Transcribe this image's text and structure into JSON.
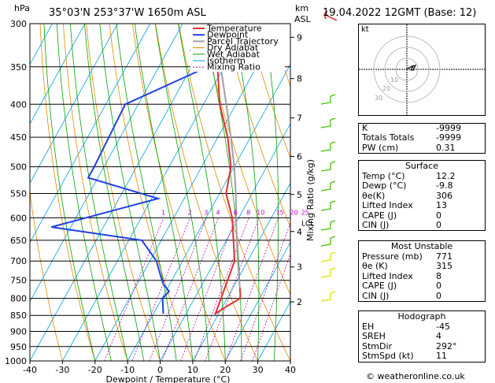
{
  "header": {
    "hpa": "hPa",
    "location": "35°03'N  253°37'W  1650m  ASL",
    "km": "km",
    "asl": "ASL",
    "datetime": "19.04.2022  12GMT  (Base: 12)"
  },
  "legend": [
    "Temperature",
    "Dewpoint",
    "Parcel Trajectory",
    "Dry Adiabat",
    "Wet Adiabat",
    "Isotherm",
    "Mixing Ratio"
  ],
  "colors": {
    "temperature": "#e03030",
    "dewpoint": "#2040e0",
    "parcel": "#a0a0a0",
    "dry": "#e08a00",
    "wet": "#00a000",
    "isotherm": "#00a0e0",
    "mixing": "#c000c0",
    "wind": "#40c000"
  },
  "chart_data": {
    "type": "line",
    "title": "Skew-T log-P sounding",
    "xlabel": "Dewpoint / Temperature (°C)",
    "ylabel": "hPa",
    "ylabel_right": "Mixing Ratio (g/kg)",
    "xlim": [
      -40,
      40
    ],
    "ylim": [
      1000,
      300
    ],
    "x_ticks": [
      -40,
      -30,
      -20,
      -10,
      0,
      10,
      20,
      30,
      40
    ],
    "pressure_ticks": [
      300,
      350,
      400,
      450,
      500,
      550,
      600,
      650,
      700,
      750,
      800,
      850,
      900,
      950,
      1000
    ],
    "km_ticks": [
      {
        "km": "9",
        "p": 315
      },
      {
        "km": "8",
        "p": 365
      },
      {
        "km": "7",
        "p": 420
      },
      {
        "km": "6",
        "p": 482
      },
      {
        "km": "5",
        "p": 552
      },
      {
        "km": "4",
        "p": 630
      },
      {
        "km": "3",
        "p": 715
      },
      {
        "km": "2",
        "p": 810
      }
    ],
    "lcl_label": "LCL",
    "lcl_pressure": 610,
    "mixing_ratio_labels": [
      "1",
      "2",
      "3",
      "4",
      "6",
      "8",
      "10",
      "15",
      "20",
      "25"
    ],
    "series": [
      {
        "name": "Temperature",
        "points": [
          [
            771,
            12.2
          ],
          [
            790,
            13.5
          ],
          [
            800,
            14
          ],
          [
            825,
            11
          ],
          [
            845,
            9
          ],
          [
            700,
            6
          ],
          [
            600,
            -2
          ],
          [
            550,
            -8
          ],
          [
            500,
            -11
          ],
          [
            450,
            -17
          ],
          [
            400,
            -25
          ],
          [
            350,
            -32
          ],
          [
            300,
            -38
          ]
        ]
      },
      {
        "name": "Dewpoint",
        "points": [
          [
            845,
            -7
          ],
          [
            800,
            -9.8
          ],
          [
            780,
            -9
          ],
          [
            760,
            -12
          ],
          [
            740,
            -14
          ],
          [
            700,
            -18
          ],
          [
            650,
            -26
          ],
          [
            620,
            -56
          ],
          [
            560,
            -28
          ],
          [
            520,
            -53
          ],
          [
            500,
            -53
          ],
          [
            400,
            -54
          ],
          [
            350,
            -35
          ],
          [
            330,
            -43
          ],
          [
            310,
            -40
          ],
          [
            300,
            -42
          ]
        ]
      },
      {
        "name": "Parcel Trajectory",
        "points": [
          [
            771,
            12.2
          ],
          [
            700,
            7
          ],
          [
            610,
            0
          ],
          [
            550,
            -5
          ],
          [
            500,
            -10
          ],
          [
            450,
            -16
          ],
          [
            400,
            -23
          ],
          [
            350,
            -31
          ],
          [
            300,
            -40
          ]
        ]
      }
    ]
  },
  "hodograph": {
    "label": "kt",
    "rings": [
      "10",
      "20",
      "30"
    ]
  },
  "indices": [
    {
      "label": "K",
      "value": "-9999"
    },
    {
      "label": "Totals Totals",
      "value": "-9999"
    },
    {
      "label": "PW (cm)",
      "value": "0.31"
    }
  ],
  "surface": {
    "title": "Surface",
    "rows": [
      {
        "label": "Temp (°C)",
        "value": "12.2"
      },
      {
        "label": "Dewp (°C)",
        "value": "-9.8"
      },
      {
        "label": "θe(K)",
        "value": "306"
      },
      {
        "label": "Lifted Index",
        "value": "13"
      },
      {
        "label": "CAPE (J)",
        "value": "0"
      },
      {
        "label": "CIN (J)",
        "value": "0"
      }
    ]
  },
  "most_unstable": {
    "title": "Most Unstable",
    "rows": [
      {
        "label": "Pressure (mb)",
        "value": "771"
      },
      {
        "label": "θe (K)",
        "value": "315"
      },
      {
        "label": "Lifted Index",
        "value": "8"
      },
      {
        "label": "CAPE (J)",
        "value": "0"
      },
      {
        "label": "CIN (J)",
        "value": "0"
      }
    ]
  },
  "hodograph_stats": {
    "title": "Hodograph",
    "rows": [
      {
        "label": "EH",
        "value": "-45"
      },
      {
        "label": "SREH",
        "value": "4"
      },
      {
        "label": "StmDir",
        "value": "292°"
      },
      {
        "label": "StmSpd (kt)",
        "value": "11"
      }
    ]
  },
  "footer": "© weatheronline.co.uk"
}
